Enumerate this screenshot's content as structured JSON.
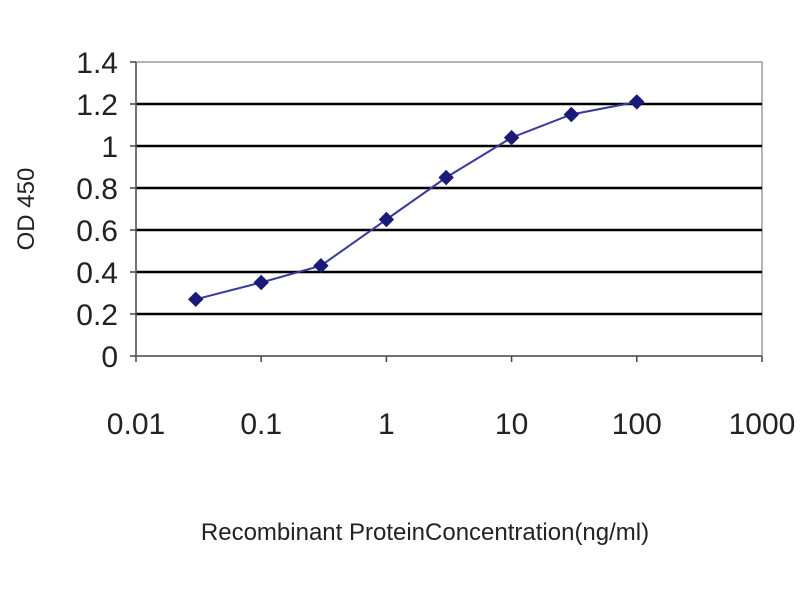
{
  "chart_data": {
    "type": "line",
    "xscale": "log",
    "xlim": [
      0.01,
      1000
    ],
    "ylim": [
      0,
      1.4
    ],
    "xticks": [
      0.01,
      0.1,
      1,
      10,
      100,
      1000
    ],
    "xtick_labels": [
      "0.01",
      "0.1",
      "1",
      "10",
      "100",
      "1000"
    ],
    "yticks": [
      0,
      0.2,
      0.4,
      0.6,
      0.8,
      1,
      1.2,
      1.4
    ],
    "ytick_labels": [
      "0",
      "0.2",
      "0.4",
      "0.6",
      "0.8",
      "1",
      "1.2",
      "1.4"
    ],
    "xlabel": "Recombinant ProteinConcentration(ng/ml)",
    "ylabel": "OD 450",
    "grid": "horizontal",
    "legend": "none",
    "series": [
      {
        "x": [
          0.03,
          0.1,
          0.3,
          1,
          3,
          10,
          30,
          100
        ],
        "y": [
          0.27,
          0.35,
          0.43,
          0.65,
          0.85,
          1.04,
          1.15,
          1.21
        ]
      }
    ],
    "colors": {
      "line": "#3a3a9c",
      "marker": "#1a1a78",
      "grid": "#000000",
      "plot_background": "#ffffff"
    }
  }
}
